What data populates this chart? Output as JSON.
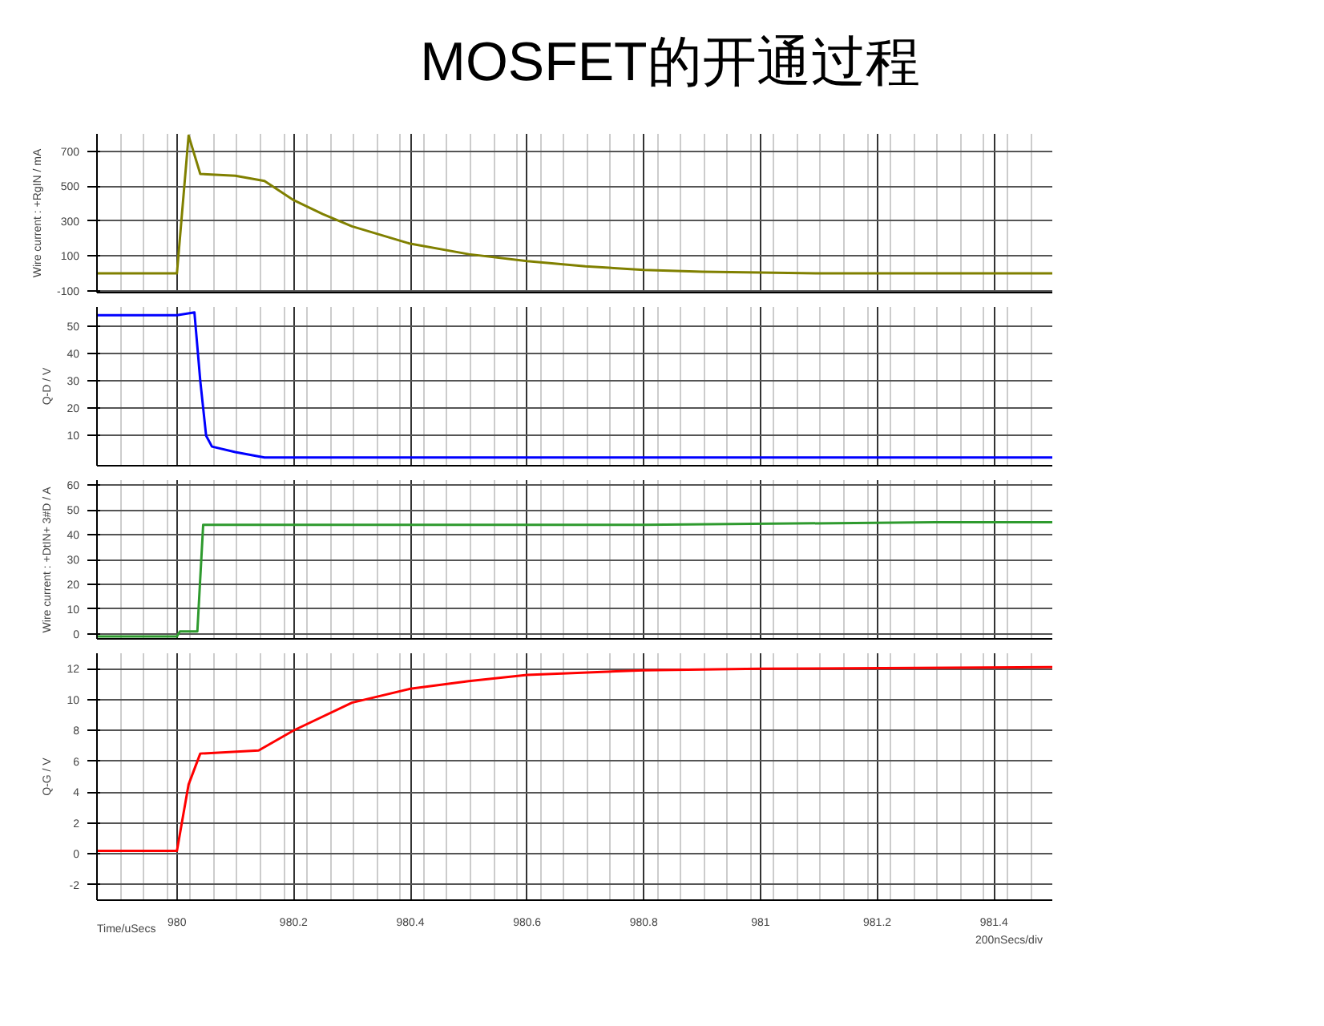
{
  "chart_data": [
    {
      "type": "line",
      "title": "MOSFET的开通过程",
      "ylabel": "Wire current : +RgIN / mA",
      "tick_labels": "y",
      "grid": true,
      "x": [
        979.863,
        980.0,
        980.02,
        980.04,
        980.1,
        980.15,
        980.2,
        980.25,
        980.3,
        980.4,
        980.5,
        980.6,
        980.7,
        980.8,
        980.9,
        981.0,
        981.1,
        981.5
      ],
      "series": [
        {
          "color": "#808000",
          "values": [
            0,
            0,
            790,
            570,
            560,
            530,
            420,
            340,
            270,
            170,
            110,
            70,
            40,
            20,
            10,
            5,
            0,
            0
          ]
        }
      ],
      "xlim": [
        979.863,
        981.5
      ],
      "xticks": [
        980,
        980.2,
        980.4,
        980.6,
        980.8,
        981,
        981.2,
        981.4
      ],
      "ylim": [
        -110,
        800
      ],
      "yticks": [
        -100,
        100,
        300,
        500,
        700
      ]
    },
    {
      "type": "line",
      "ylabel": "Q-D / V",
      "tick_labels": "y",
      "grid": true,
      "x": [
        979.863,
        980.0,
        980.03,
        980.04,
        980.05,
        980.06,
        980.1,
        980.15,
        981.5
      ],
      "series": [
        {
          "color": "#0000ff",
          "values": [
            54,
            54,
            55,
            30,
            10,
            6,
            4,
            2,
            2
          ]
        }
      ],
      "xlim": [
        979.863,
        981.5
      ],
      "xticks": [
        980,
        980.2,
        980.4,
        980.6,
        980.8,
        981,
        981.2,
        981.4
      ],
      "ylim": [
        -1,
        57
      ],
      "yticks": [
        10,
        20,
        30,
        40,
        50
      ]
    },
    {
      "type": "line",
      "ylabel": "Wire current : +DtIN+ 3#D / A",
      "tick_labels": "y",
      "grid": true,
      "x": [
        979.863,
        980.0,
        980.005,
        980.035,
        980.045,
        980.8,
        981.3,
        981.5
      ],
      "series": [
        {
          "color": "#2e9a2e",
          "values": [
            -1,
            -1,
            1,
            1,
            44,
            44,
            45,
            45
          ]
        }
      ],
      "xlim": [
        979.863,
        981.5
      ],
      "xticks": [
        980,
        980.2,
        980.4,
        980.6,
        980.8,
        981,
        981.2,
        981.4
      ],
      "ylim": [
        -2,
        62
      ],
      "yticks": [
        0,
        10,
        20,
        30,
        40,
        50,
        60
      ]
    },
    {
      "type": "line",
      "ylabel": "Q-G / V",
      "xlabel": "Time/uSecs",
      "annotations": [
        "200nSecs/div"
      ],
      "grid": true,
      "x": [
        979.863,
        980.0,
        980.02,
        980.04,
        980.14,
        980.2,
        980.3,
        980.4,
        980.5,
        980.6,
        980.8,
        981.0,
        981.5
      ],
      "series": [
        {
          "color": "#ff0000",
          "values": [
            0.2,
            0.2,
            4.5,
            6.5,
            6.7,
            8,
            9.8,
            10.7,
            11.2,
            11.6,
            11.9,
            12,
            12.1
          ]
        }
      ],
      "xlim": [
        979.863,
        981.5
      ],
      "xticks": [
        980,
        {
          "value": 980.2,
          "label": "980.2"
        },
        {
          "value": 980.4,
          "label": "980.4"
        },
        {
          "value": 980.6,
          "label": "980.6"
        },
        {
          "value": 980.8,
          "label": "980.8"
        },
        981,
        {
          "value": 981.2,
          "label": "981.2"
        },
        {
          "value": 981.4,
          "label": "981.4"
        }
      ],
      "ylim": [
        -3,
        13
      ],
      "yticks": [
        -2,
        0,
        2,
        4,
        6,
        8,
        10,
        12
      ]
    }
  ]
}
